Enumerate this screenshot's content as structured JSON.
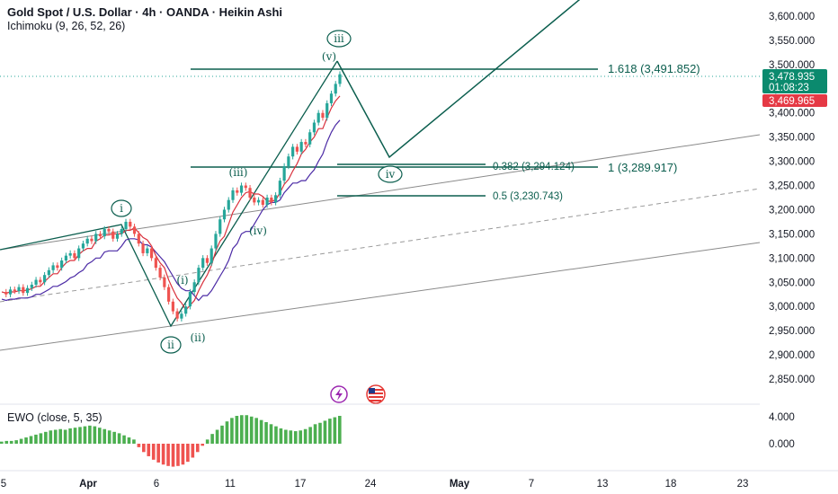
{
  "header": {
    "title": "Gold Spot / U.S. Dollar · 4h · OANDA · Heikin Ashi",
    "indicator": "Ichimoku (9, 26, 52, 26)"
  },
  "ewo": {
    "label": "EWO (close, 5, 35)",
    "ticks": [
      "4.000",
      "0.000"
    ]
  },
  "chart_data": {
    "type": "candlestick",
    "price_axis": {
      "ticks": [
        "3,600.000",
        "3,550.000",
        "3,500.000",
        "3,450.000",
        "3,400.000",
        "3,350.000",
        "3,300.000",
        "3,250.000",
        "3,200.000",
        "3,150.000",
        "3,100.000",
        "3,050.000",
        "3,000.000",
        "2,950.000",
        "2,900.000",
        "2,850.000"
      ],
      "range": [
        2830,
        3630
      ]
    },
    "time_axis": {
      "ticks": [
        "5",
        "Apr",
        "6",
        "11",
        "17",
        "24",
        "May",
        "7",
        "13",
        "18",
        "23"
      ]
    },
    "price_labels": {
      "last": "3,478.935",
      "countdown": "01:08:23",
      "second": "3,469.965"
    },
    "fib_levels": [
      {
        "label": "1.618 (3,491.852)",
        "value": 3491.852
      },
      {
        "label": "0.382 (3,294.124)",
        "value": 3294.124
      },
      {
        "label": "1 (3,289.917)",
        "value": 3289.917
      },
      {
        "label": "0.5 (3,230.743)",
        "value": 3230.743
      }
    ],
    "wave_labels": [
      "i",
      "ii",
      "(i)",
      "(ii)",
      "(iii)",
      "(iv)",
      "(v)",
      "iii",
      "iv"
    ],
    "ha_series": [
      3030,
      3025,
      3035,
      3032,
      3040,
      3028,
      3038,
      3045,
      3055,
      3050,
      3065,
      3075,
      3085,
      3080,
      3095,
      3105,
      3110,
      3100,
      3120,
      3130,
      3140,
      3135,
      3150,
      3145,
      3160,
      3155,
      3140,
      3150,
      3160,
      3175,
      3165,
      3150,
      3130,
      3110,
      3120,
      3100,
      3080,
      3060,
      3040,
      3010,
      2990,
      2975,
      2985,
      3000,
      3030,
      3050,
      3080,
      3100,
      3090,
      3120,
      3150,
      3180,
      3200,
      3220,
      3240,
      3235,
      3250,
      3245,
      3225,
      3215,
      3220,
      3210,
      3225,
      3215,
      3230,
      3260,
      3290,
      3310,
      3330,
      3320,
      3340,
      3335,
      3360,
      3380,
      3400,
      3390,
      3420,
      3440,
      3460,
      3480
    ],
    "ewo_values": [
      0.3,
      0.4,
      0.4,
      0.5,
      0.7,
      0.9,
      1.1,
      1.3,
      1.5,
      1.7,
      1.9,
      2.0,
      2.1,
      2.0,
      2.2,
      2.3,
      2.4,
      2.5,
      2.6,
      2.5,
      2.3,
      2.1,
      1.9,
      1.7,
      1.5,
      1.2,
      0.9,
      0.6,
      -0.5,
      -1.2,
      -1.8,
      -2.3,
      -2.7,
      -3.0,
      -3.2,
      -3.3,
      -3.2,
      -3.0,
      -2.6,
      -2.0,
      -1.2,
      -0.3,
      0.6,
      1.4,
      2.0,
      2.6,
      3.2,
      3.7,
      4.0,
      4.1,
      4.1,
      3.9,
      3.7,
      3.4,
      3.1,
      2.8,
      2.5,
      2.2,
      2.0,
      1.9,
      1.8,
      1.9,
      2.1,
      2.4,
      2.8,
      3.0,
      3.3,
      3.6,
      3.8,
      4.0
    ]
  }
}
